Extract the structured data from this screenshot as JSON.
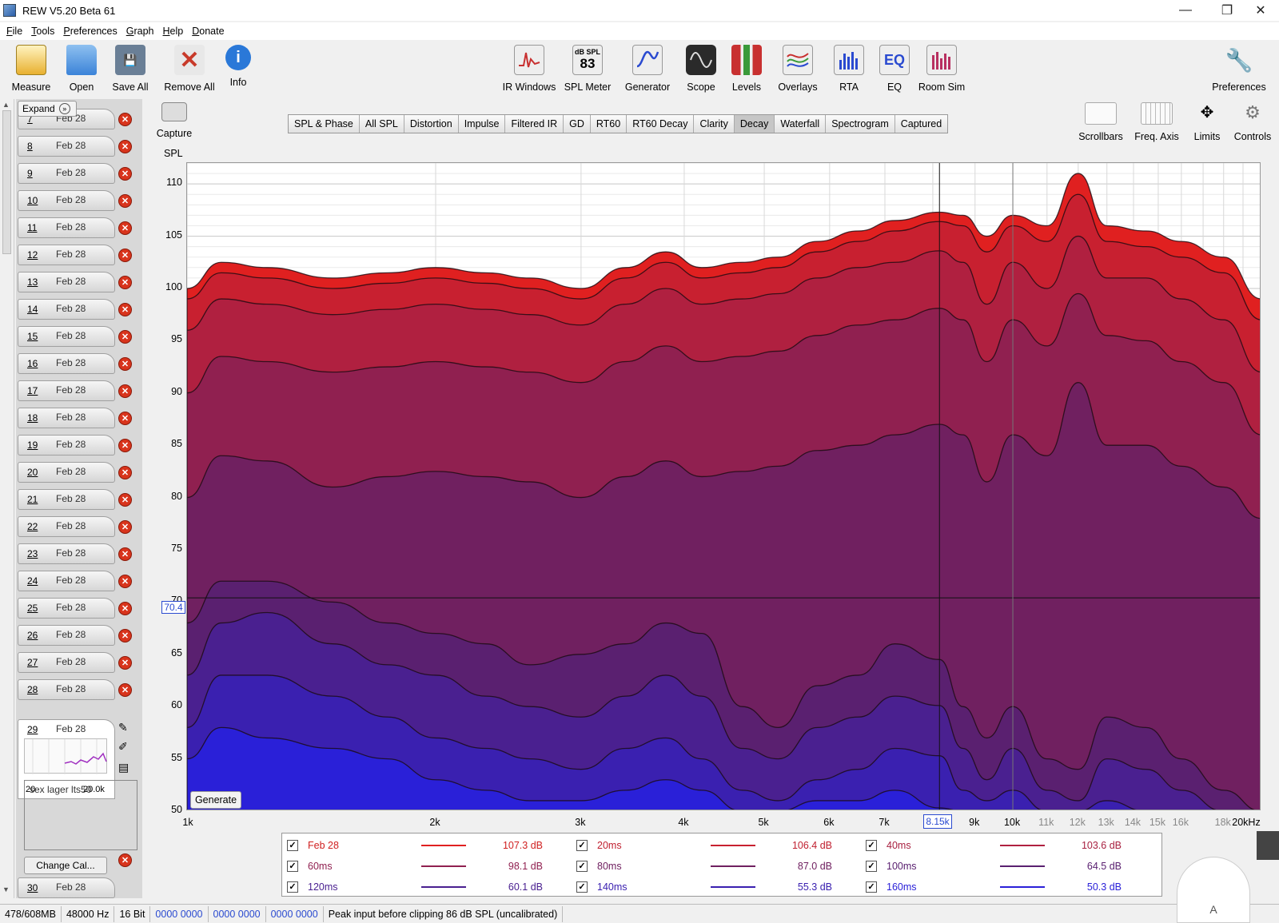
{
  "window": {
    "title": "REW V5.20 Beta 61",
    "minimize": "—",
    "maximize": "❐",
    "close": "✕"
  },
  "menu": [
    "File",
    "Tools",
    "Preferences",
    "Graph",
    "Help",
    "Donate"
  ],
  "toolbar": {
    "left": [
      {
        "label": "Measure",
        "icon": "measure-icon",
        "color": "#e8b030"
      },
      {
        "label": "Open",
        "icon": "folder-icon",
        "color": "#3b83d8"
      },
      {
        "label": "Save All",
        "icon": "save-icon",
        "color": "#6a7f96"
      },
      {
        "label": "Remove All",
        "icon": "remove-all-icon",
        "color": "#c83a2a"
      },
      {
        "label": "Info",
        "icon": "info-icon",
        "color": "#2a78d8"
      }
    ],
    "center": [
      {
        "label": "IR Windows",
        "icon": "ir-windows-icon",
        "color": "#d8d8d8"
      },
      {
        "label": "SPL Meter",
        "icon": "spl-meter-icon",
        "color": "#e6e6e6",
        "meter_top": "dB SPL",
        "meter_value": "83"
      },
      {
        "label": "Generator",
        "icon": "generator-icon",
        "color": "#e6e6e6"
      },
      {
        "label": "Scope",
        "icon": "scope-icon",
        "color": "#2a2a2a"
      },
      {
        "label": "Levels",
        "icon": "levels-icon",
        "color": "#c83030"
      },
      {
        "label": "Overlays",
        "icon": "overlays-icon",
        "color": "#e6e6e6"
      },
      {
        "label": "RTA",
        "icon": "rta-icon",
        "color": "#2a4ad0"
      },
      {
        "label": "EQ",
        "icon": "eq-icon",
        "color": "#2a4ad0",
        "text": "EQ"
      },
      {
        "label": "Room Sim",
        "icon": "room-sim-icon",
        "color": "#b83060"
      }
    ],
    "right": {
      "label": "Preferences",
      "icon": "wrench-icon"
    }
  },
  "sidebar": {
    "expand_label": "Expand",
    "rows": [
      {
        "num": "7",
        "date": "Feb 28"
      },
      {
        "num": "8",
        "date": "Feb 28"
      },
      {
        "num": "9",
        "date": "Feb 28"
      },
      {
        "num": "10",
        "date": "Feb 28"
      },
      {
        "num": "11",
        "date": "Feb 28"
      },
      {
        "num": "12",
        "date": "Feb 28"
      },
      {
        "num": "13",
        "date": "Feb 28"
      },
      {
        "num": "14",
        "date": "Feb 28"
      },
      {
        "num": "15",
        "date": "Feb 28"
      },
      {
        "num": "16",
        "date": "Feb 28"
      },
      {
        "num": "17",
        "date": "Feb 28"
      },
      {
        "num": "18",
        "date": "Feb 28"
      },
      {
        "num": "19",
        "date": "Feb 28"
      },
      {
        "num": "20",
        "date": "Feb 28"
      },
      {
        "num": "21",
        "date": "Feb 28"
      },
      {
        "num": "22",
        "date": "Feb 28"
      },
      {
        "num": "23",
        "date": "Feb 28"
      },
      {
        "num": "24",
        "date": "Feb 28"
      },
      {
        "num": "25",
        "date": "Feb 28"
      },
      {
        "num": "26",
        "date": "Feb 28"
      },
      {
        "num": "27",
        "date": "Feb 28"
      },
      {
        "num": "28",
        "date": "Feb 28"
      }
    ],
    "selected": {
      "num": "29",
      "date": "Feb 28",
      "mini_x_min": "20",
      "mini_x_max": "20.0k",
      "notes": "sex lager lts50",
      "change_cal": "Change Cal..."
    },
    "last_row": {
      "num": "30",
      "date": "Feb 28"
    }
  },
  "graph": {
    "capture_label": "Capture",
    "tabs": [
      "SPL & Phase",
      "All SPL",
      "Distortion",
      "Impulse",
      "Filtered IR",
      "GD",
      "RT60",
      "RT60 Decay",
      "Clarity",
      "Decay",
      "Waterfall",
      "Spectrogram",
      "Captured"
    ],
    "active_tab": "Decay",
    "right_tools": [
      "Scrollbars",
      "Freq. Axis",
      "Limits",
      "Controls"
    ],
    "y_axis_title": "SPL",
    "y_ticks": [
      "110",
      "105",
      "100",
      "95",
      "90",
      "85",
      "80",
      "75",
      "70",
      "65",
      "60",
      "55",
      "50"
    ],
    "x_ticks": [
      {
        "label": "1k",
        "dim": false
      },
      {
        "label": "2k",
        "dim": false
      },
      {
        "label": "3k",
        "dim": false
      },
      {
        "label": "4k",
        "dim": false
      },
      {
        "label": "5k",
        "dim": false
      },
      {
        "label": "6k",
        "dim": false
      },
      {
        "label": "7k",
        "dim": false
      },
      {
        "label": "9k",
        "dim": false
      },
      {
        "label": "10k",
        "dim": false
      },
      {
        "label": "11k",
        "dim": true
      },
      {
        "label": "12k",
        "dim": true
      },
      {
        "label": "13k",
        "dim": true
      },
      {
        "label": "14k",
        "dim": true
      },
      {
        "label": "15k",
        "dim": true
      },
      {
        "label": "16k",
        "dim": true
      },
      {
        "label": "18k",
        "dim": true
      },
      {
        "label": "20kHz",
        "dim": false
      }
    ],
    "cursor_y": "70.4",
    "cursor_x": "8.15k",
    "generate_label": "Generate"
  },
  "chart_data": {
    "type": "area",
    "xscale": "log",
    "xlim": [
      1000,
      20000
    ],
    "ylim": [
      50,
      112
    ],
    "ylabel": "SPL",
    "x": [
      1000,
      1100,
      1250,
      1500,
      1750,
      2000,
      2300,
      2600,
      3000,
      3400,
      3800,
      4200,
      4700,
      5200,
      5800,
      6500,
      7200,
      8150,
      8700,
      9300,
      10000,
      11000,
      12000,
      13000,
      14500,
      16000,
      18000,
      20000
    ],
    "series": [
      {
        "name": "Feb 28",
        "color": "#e02020",
        "values": [
          100,
          102.5,
          102,
          101,
          101.5,
          102,
          101.5,
          101,
          100,
          102,
          103.5,
          102,
          102.5,
          103,
          104.5,
          105.5,
          106.5,
          107.3,
          107,
          105,
          107,
          106,
          111,
          106,
          105.5,
          104.5,
          103,
          99
        ]
      },
      {
        "name": "20ms",
        "color": "#c82030",
        "values": [
          99,
          101.5,
          101,
          100,
          100.5,
          101,
          100.5,
          100,
          99,
          101,
          102.5,
          101,
          101.5,
          102,
          103.5,
          104.5,
          105.5,
          106.4,
          106,
          103.5,
          106,
          104.5,
          109,
          104.5,
          104,
          103,
          101.5,
          97
        ]
      },
      {
        "name": "40ms",
        "color": "#b02040",
        "values": [
          96,
          99,
          98.5,
          97.5,
          98,
          98.5,
          98,
          97.5,
          96.5,
          98.5,
          100,
          98.5,
          99,
          99.5,
          101,
          102,
          102.5,
          103.6,
          102.5,
          98.5,
          102.5,
          100,
          105,
          101,
          101,
          99,
          97,
          92
        ]
      },
      {
        "name": "60ms",
        "color": "#902050",
        "values": [
          90,
          93.5,
          93,
          92,
          92.5,
          93,
          92.5,
          92,
          91,
          93,
          94.5,
          93,
          93.5,
          94,
          95.5,
          96.5,
          97,
          98.1,
          97,
          93,
          97,
          94.5,
          99.5,
          95.5,
          95,
          93,
          91,
          86
        ]
      },
      {
        "name": "80ms",
        "color": "#702060",
        "values": [
          80,
          84,
          83.5,
          81,
          82,
          82.5,
          82,
          81.5,
          80,
          82,
          83.5,
          82,
          82.5,
          83,
          84.5,
          85,
          86,
          87,
          86,
          81.5,
          86,
          84,
          91,
          85,
          85,
          83,
          81,
          78
        ]
      },
      {
        "name": "100ms",
        "color": "#5a2070",
        "values": [
          68,
          72,
          72,
          70,
          68,
          67,
          66,
          64,
          65,
          66,
          68,
          67,
          60,
          58,
          62,
          63,
          66,
          64.5,
          60,
          57,
          60,
          55,
          54,
          59,
          58,
          55,
          52,
          50
        ]
      },
      {
        "name": "120ms",
        "color": "#4a2090",
        "values": [
          63,
          68,
          69,
          66,
          64,
          63,
          61,
          60,
          59,
          61,
          63,
          61,
          56,
          55,
          58,
          59,
          61,
          60.1,
          56,
          53,
          56,
          52,
          51,
          55,
          54,
          52,
          50,
          50
        ]
      },
      {
        "name": "140ms",
        "color": "#3a20b0",
        "values": [
          58,
          63,
          63,
          61,
          59,
          57,
          56,
          55,
          54,
          56,
          57,
          55,
          52,
          51,
          53,
          54,
          56,
          55.3,
          52,
          51,
          52,
          50,
          50,
          51,
          50,
          50,
          50,
          50
        ]
      },
      {
        "name": "160ms",
        "color": "#2a20d8",
        "values": [
          55,
          58,
          57,
          56,
          55,
          53,
          52,
          51,
          51,
          52,
          53,
          52,
          50,
          50,
          51,
          51,
          52,
          50.3,
          50,
          50,
          50,
          50,
          50,
          50,
          50,
          50,
          50,
          50
        ]
      }
    ],
    "cursor": {
      "x": 8150,
      "y": 70.4
    }
  },
  "legend": [
    {
      "name": "Feb 28",
      "value": "107.3 dB",
      "color": "#e02020",
      "text_color": "#d02020"
    },
    {
      "name": "20ms",
      "value": "106.4 dB",
      "color": "#c82030",
      "text_color": "#c02030"
    },
    {
      "name": "40ms",
      "value": "103.6 dB",
      "color": "#b02040",
      "text_color": "#a82040"
    },
    {
      "name": "60ms",
      "value": "98.1 dB",
      "color": "#902050",
      "text_color": "#902050"
    },
    {
      "name": "80ms",
      "value": "87.0 dB",
      "color": "#702060",
      "text_color": "#702060"
    },
    {
      "name": "100ms",
      "value": "64.5 dB",
      "color": "#5a2070",
      "text_color": "#5a2070"
    },
    {
      "name": "120ms",
      "value": "60.1 dB",
      "color": "#4a2090",
      "text_color": "#4a2090"
    },
    {
      "name": "140ms",
      "value": "55.3 dB",
      "color": "#3a20b0",
      "text_color": "#3a20b0"
    },
    {
      "name": "160ms",
      "value": "50.3 dB",
      "color": "#2a20d8",
      "text_color": "#2a20d8"
    }
  ],
  "statusbar": {
    "memory": "478/608MB",
    "sample_rate": "48000 Hz",
    "bit_depth": "16 Bit",
    "monitors": [
      "0000 0000",
      "0000 0000",
      "0000 0000"
    ],
    "message": "Peak input before clipping 86 dB SPL (uncalibrated)"
  },
  "corner_button_label": "A"
}
